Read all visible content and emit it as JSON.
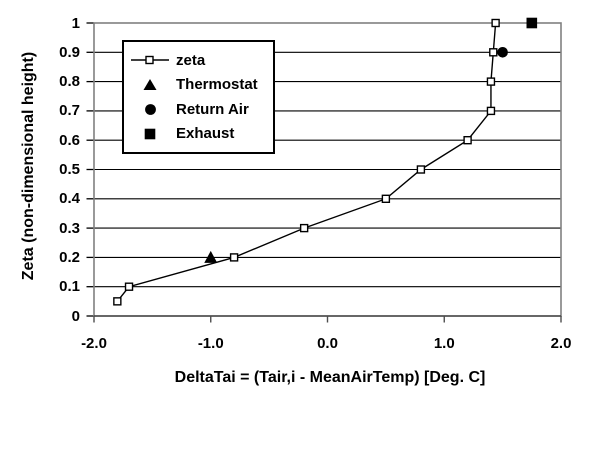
{
  "chart_data": {
    "type": "line",
    "title": "",
    "xlabel": "DeltaTai = (Tair,i - MeanAirTemp) [Deg. C]",
    "ylabel": "Zeta (non-dimensional height)",
    "xlim": [
      -2.0,
      2.0
    ],
    "ylim": [
      0,
      1
    ],
    "xtick_values": [
      -2,
      -1,
      0,
      1,
      2
    ],
    "xtick_labels": [
      "-2.0",
      "-1.0",
      "0.0",
      "1.0",
      "2.0"
    ],
    "ytick_values": [
      0,
      0.1,
      0.2,
      0.3,
      0.4,
      0.5,
      0.6,
      0.7,
      0.8,
      0.9,
      1
    ],
    "ytick_labels": [
      "0",
      "0.1",
      "0.2",
      "0.3",
      "0.4",
      "0.5",
      "0.6",
      "0.7",
      "0.8",
      "0.9",
      "1"
    ],
    "grid": "horizontal-major",
    "legend_position": "upper-left-inside",
    "colors": {
      "series": "#000000",
      "grid": "#000000",
      "plot_border": "#808080",
      "axis_dark": "#3a3a3a",
      "x_tick": "#4d4d4d",
      "marker_fill": "#ffffff",
      "background": "#ffffff",
      "text": "#000000"
    },
    "series": [
      {
        "name": "zeta",
        "type": "line",
        "marker": "open-square",
        "points": [
          [
            -1.8,
            0.05
          ],
          [
            -1.7,
            0.1
          ],
          [
            -0.8,
            0.2
          ],
          [
            -0.2,
            0.3
          ],
          [
            0.5,
            0.4
          ],
          [
            0.8,
            0.5
          ],
          [
            1.2,
            0.6
          ],
          [
            1.4,
            0.7
          ],
          [
            1.4,
            0.8
          ],
          [
            1.42,
            0.9
          ],
          [
            1.44,
            1.0
          ]
        ]
      },
      {
        "name": "Thermostat",
        "type": "scatter",
        "marker": "filled-triangle",
        "points": [
          [
            -1.0,
            0.2
          ]
        ]
      },
      {
        "name": "Return Air",
        "type": "scatter",
        "marker": "filled-circle",
        "points": [
          [
            1.5,
            0.9
          ]
        ]
      },
      {
        "name": "Exhaust",
        "type": "scatter",
        "marker": "filled-square",
        "points": [
          [
            1.75,
            1.0
          ]
        ]
      }
    ]
  }
}
